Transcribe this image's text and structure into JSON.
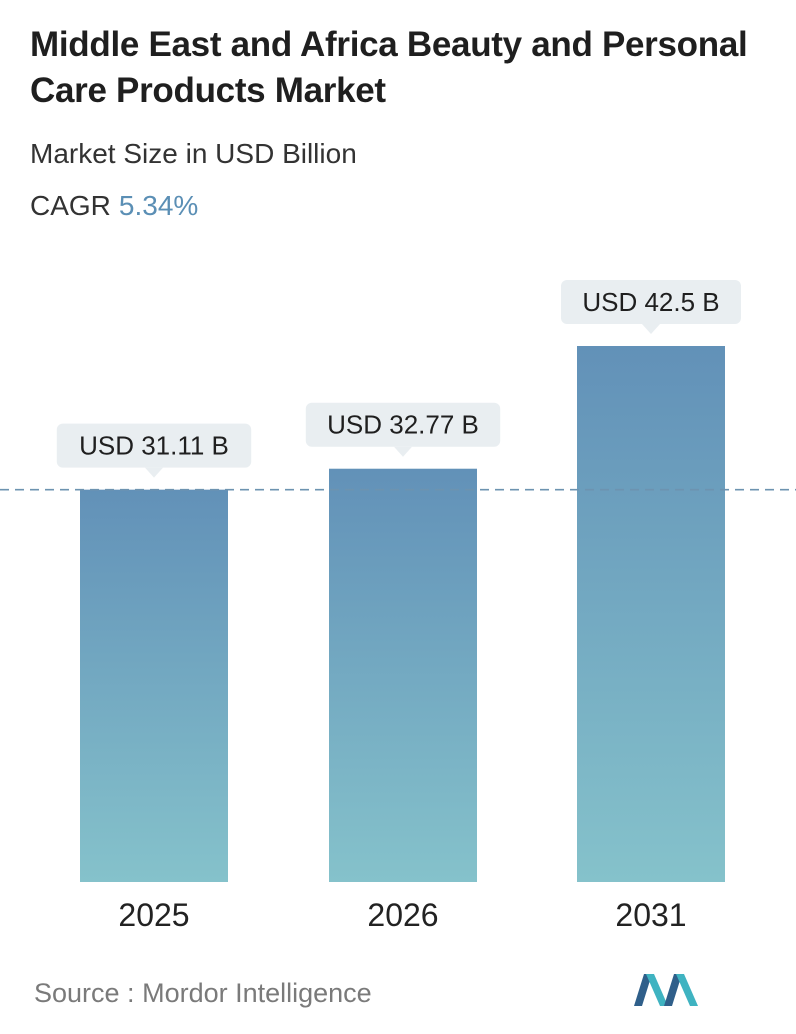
{
  "header": {
    "title": "Middle East and Africa Beauty and Personal Care Products Market",
    "subtitle": "Market Size in USD Billion",
    "cagr_label": "CAGR",
    "cagr_value": "5.34%"
  },
  "chart_data": {
    "type": "bar",
    "categories": [
      "2025",
      "2026",
      "2031"
    ],
    "values": [
      31.11,
      32.77,
      42.5
    ],
    "data_labels": [
      "USD 31.11 B",
      "USD 32.77 B",
      "USD 42.5 B"
    ],
    "ylabel": "",
    "xlabel": "",
    "grid": false,
    "reference_line_value": 31.11
  },
  "colors": {
    "bar_top": "#6291b8",
    "bar_bottom": "#85c2cb",
    "label_bg": "#e9eef1",
    "dashed_line": "#6d93b0",
    "accent": "#5b8fb5"
  },
  "footer": {
    "source_label": "Source :",
    "source_name": "Mordor Intelligence",
    "logo_icon": "mordor-intelligence-logo-icon"
  }
}
